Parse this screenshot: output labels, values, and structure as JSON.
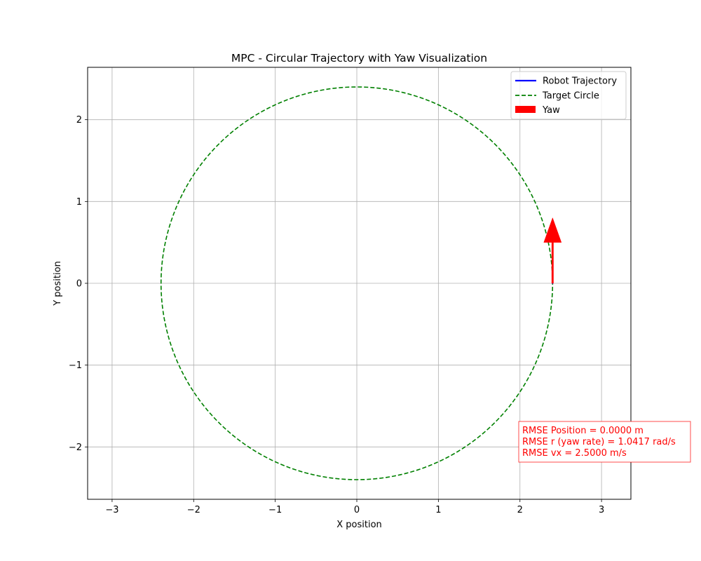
{
  "chart_data": {
    "type": "line",
    "title": "MPC - Circular Trajectory with Yaw Visualization",
    "xlabel": "X position",
    "ylabel": "Y position",
    "xlim": [
      -3.3,
      3.36
    ],
    "ylim": [
      -2.64,
      2.64
    ],
    "xticks": [
      -3,
      -2,
      -1,
      0,
      1,
      2,
      3
    ],
    "yticks": [
      -2,
      -1,
      0,
      1,
      2
    ],
    "xtick_labels": [
      "−3",
      "−2",
      "−1",
      "0",
      "1",
      "2",
      "3"
    ],
    "ytick_labels": [
      "−2",
      "−1",
      "0",
      "1",
      "2"
    ],
    "grid": true,
    "legend_position": "top-right",
    "series": [
      {
        "name": "Robot Trajectory",
        "style": "solid",
        "color": "#0000ff",
        "x": [
          2.4
        ],
        "y": [
          0.0
        ]
      },
      {
        "name": "Target Circle",
        "style": "dashed",
        "color": "#008000",
        "shape": "circle",
        "center": [
          0,
          0
        ],
        "radius": 2.4
      }
    ],
    "yaw_arrow": {
      "name": "Yaw",
      "color": "#ff0000",
      "x": 2.4,
      "y": 0.0,
      "dx": 0.0,
      "dy": 0.8
    },
    "annotation": {
      "lines": [
        "RMSE Position = 0.0000 m",
        "RMSE r (yaw rate) = 1.0417 rad/s",
        "RMSE vx = 2.5000 m/s"
      ],
      "color": "#ff0000"
    }
  }
}
